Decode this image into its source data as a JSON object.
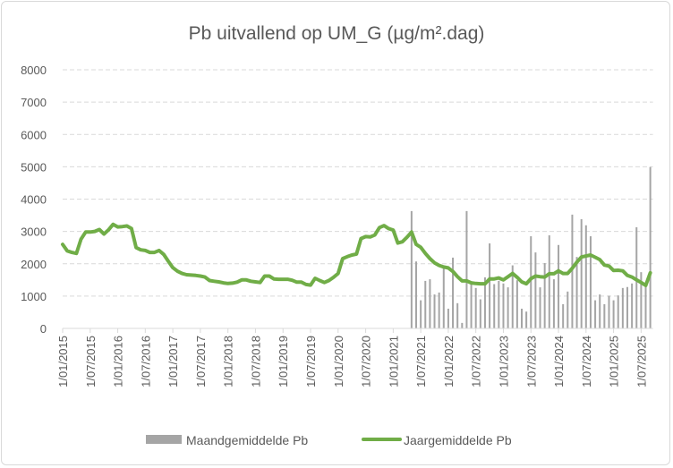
{
  "chart_data": {
    "type": "bar+line",
    "title": "Pb uitvallend op UM_G (µg/m².dag)",
    "xlabel": "",
    "ylabel": "",
    "ylim": [
      0,
      8000
    ],
    "yticks": [
      0,
      1000,
      2000,
      3000,
      4000,
      5000,
      6000,
      7000,
      8000
    ],
    "grid": true,
    "legend_position": "bottom",
    "x_start_month": "2015-01",
    "x_tick_labels": [
      "1/01/2015",
      "1/07/2015",
      "1/01/2016",
      "1/07/2016",
      "1/01/2017",
      "1/07/2017",
      "1/01/2018",
      "1/07/2018",
      "1/01/2019",
      "1/07/2019",
      "1/01/2020",
      "1/07/2020",
      "1/01/2021",
      "1/07/2021",
      "1/01/2022",
      "1/07/2022",
      "1/01/2023",
      "1/07/2023",
      "1/01/2024",
      "1/07/2024",
      "1/01/2025",
      "1/07/2025"
    ],
    "series": [
      {
        "name": "Maandgemiddelde Pb",
        "type": "bar",
        "color": "#a5a5a5",
        "start_month_index": 76,
        "values": [
          3630,
          2070,
          870,
          1470,
          1520,
          1050,
          1110,
          1900,
          610,
          2190,
          780,
          170,
          3630,
          1390,
          1250,
          900,
          1580,
          2630,
          1370,
          1470,
          1390,
          1270,
          1950,
          1490,
          610,
          520,
          2850,
          2350,
          1270,
          2020,
          2880,
          1520,
          2580,
          750,
          1140,
          3520,
          2210,
          3380,
          3190,
          2850,
          870,
          1050,
          750,
          1010,
          870,
          1020,
          1250,
          1280,
          1390,
          3130,
          1740,
          1280,
          4990
        ]
      },
      {
        "name": "Jaargemiddelde Pb",
        "type": "line",
        "color": "#70ad47",
        "start_month_index": 0,
        "values": [
          2600,
          2400,
          2350,
          2320,
          2760,
          2980,
          2980,
          3000,
          3060,
          2920,
          3050,
          3220,
          3140,
          3150,
          3170,
          3090,
          2500,
          2430,
          2410,
          2350,
          2350,
          2410,
          2290,
          2080,
          1880,
          1770,
          1700,
          1660,
          1650,
          1640,
          1620,
          1590,
          1480,
          1460,
          1440,
          1410,
          1390,
          1400,
          1430,
          1500,
          1500,
          1460,
          1440,
          1420,
          1620,
          1620,
          1530,
          1520,
          1520,
          1520,
          1490,
          1430,
          1430,
          1360,
          1340,
          1550,
          1480,
          1420,
          1480,
          1580,
          1700,
          2160,
          2220,
          2270,
          2300,
          2780,
          2840,
          2830,
          2890,
          3120,
          3180,
          3090,
          3040,
          2640,
          2680,
          2820,
          2980,
          2600,
          2510,
          2320,
          2160,
          2030,
          1950,
          1900,
          1870,
          1760,
          1600,
          1470,
          1470,
          1410,
          1390,
          1380,
          1380,
          1530,
          1530,
          1560,
          1500,
          1600,
          1700,
          1580,
          1440,
          1380,
          1540,
          1620,
          1600,
          1590,
          1690,
          1690,
          1780,
          1700,
          1700,
          1860,
          2050,
          2210,
          2240,
          2270,
          2200,
          2130,
          1960,
          1930,
          1790,
          1800,
          1780,
          1640,
          1590,
          1500,
          1420,
          1330,
          1720
        ]
      }
    ]
  }
}
